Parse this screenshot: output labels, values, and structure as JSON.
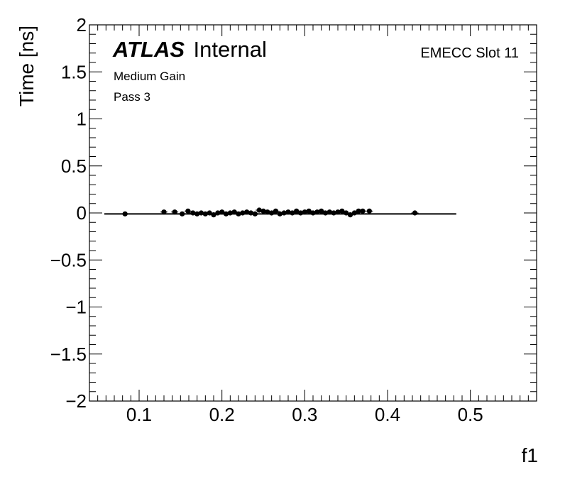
{
  "chart_data": {
    "type": "scatter",
    "xlabel": "f1",
    "ylabel": "Time [ns]",
    "xlim": [
      0.04,
      0.58
    ],
    "ylim": [
      -2,
      2
    ],
    "x_ticks": [
      0.1,
      0.2,
      0.3,
      0.4,
      0.5
    ],
    "x_tick_labels": [
      "0.1",
      "0.2",
      "0.3",
      "0.4",
      "0.5"
    ],
    "y_ticks": [
      -2,
      -1.5,
      -1,
      -0.5,
      0,
      0.5,
      1,
      1.5,
      2
    ],
    "y_tick_labels": [
      "−2",
      "−1.5",
      "−1",
      "−0.5",
      "0",
      "0.5",
      "1",
      "1.5",
      "2"
    ],
    "annotations": {
      "atlas_bold": "ATLAS",
      "atlas_label": "Internal",
      "line1": "Medium Gain",
      "line2": "Pass 3",
      "slot": "EMECC Slot 11"
    },
    "grid": false,
    "fit_line": {
      "x": [
        0.058,
        0.483
      ],
      "y": [
        -0.01,
        -0.01
      ]
    },
    "points": {
      "x": [
        0.083,
        0.13,
        0.143,
        0.152,
        0.159,
        0.165,
        0.17,
        0.175,
        0.18,
        0.185,
        0.19,
        0.195,
        0.2,
        0.205,
        0.21,
        0.215,
        0.22,
        0.225,
        0.23,
        0.235,
        0.24,
        0.245,
        0.25,
        0.255,
        0.26,
        0.265,
        0.27,
        0.275,
        0.28,
        0.285,
        0.29,
        0.295,
        0.3,
        0.305,
        0.31,
        0.315,
        0.32,
        0.325,
        0.33,
        0.335,
        0.34,
        0.345,
        0.35,
        0.355,
        0.36,
        0.365,
        0.37,
        0.378,
        0.433
      ],
      "y": [
        -0.01,
        0.01,
        0.01,
        -0.01,
        0.02,
        0.0,
        -0.01,
        0.0,
        -0.01,
        0.0,
        -0.02,
        0.0,
        0.01,
        -0.01,
        0.0,
        0.01,
        -0.01,
        0.0,
        0.01,
        0.0,
        -0.01,
        0.03,
        0.02,
        0.01,
        0.0,
        0.02,
        -0.01,
        0.0,
        0.01,
        0.0,
        0.02,
        0.0,
        0.01,
        0.02,
        0.0,
        0.01,
        0.02,
        0.0,
        0.01,
        0.0,
        0.01,
        0.02,
        0.0,
        -0.02,
        0.0,
        0.02,
        0.02,
        0.02,
        0.0
      ]
    }
  }
}
